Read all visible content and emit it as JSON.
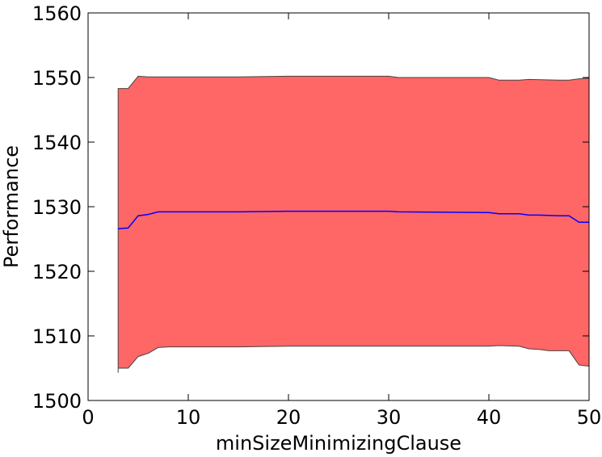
{
  "chart_data": {
    "type": "area",
    "title": "",
    "xlabel": "minSizeMinimizingClause",
    "ylabel": "Performance",
    "xlim": [
      0,
      50
    ],
    "ylim": [
      1500,
      1560
    ],
    "xticks": [
      0,
      10,
      20,
      30,
      40,
      50
    ],
    "yticks": [
      1500,
      1510,
      1520,
      1530,
      1540,
      1550,
      1560
    ],
    "grid": false,
    "legend": "none",
    "colors": {
      "band_fill": "#ff6666",
      "band_edge": "#444444",
      "mean_line": "#0000ff"
    },
    "band_upper": {
      "x": [
        3,
        4,
        5,
        6,
        8,
        10,
        15,
        20,
        25,
        30,
        31,
        40,
        41,
        43,
        44,
        47,
        48,
        49,
        50
      ],
      "y": [
        1548.3,
        1548.3,
        1550.2,
        1550.1,
        1550.1,
        1550.1,
        1550.1,
        1550.2,
        1550.2,
        1550.2,
        1550.0,
        1550.0,
        1549.6,
        1549.6,
        1549.7,
        1549.6,
        1549.6,
        1549.8,
        1549.9
      ]
    },
    "band_lower": {
      "x": [
        3,
        3,
        4,
        5,
        6,
        7,
        8,
        10,
        15,
        20,
        25,
        30,
        31,
        40,
        41,
        43,
        44,
        45,
        46,
        47,
        48,
        49,
        50
      ],
      "y": [
        1504.3,
        1505.0,
        1505.0,
        1506.8,
        1507.3,
        1508.2,
        1508.3,
        1508.3,
        1508.3,
        1508.4,
        1508.4,
        1508.4,
        1508.4,
        1508.4,
        1508.5,
        1508.4,
        1508.0,
        1507.9,
        1507.7,
        1507.7,
        1507.7,
        1505.5,
        1505.3
      ]
    },
    "mean": {
      "x": [
        3,
        4,
        5,
        6,
        7,
        8,
        10,
        15,
        20,
        25,
        30,
        31,
        40,
        41,
        43,
        44,
        45,
        47,
        48,
        49,
        50
      ],
      "y": [
        1526.6,
        1526.7,
        1528.6,
        1528.8,
        1529.2,
        1529.2,
        1529.2,
        1529.2,
        1529.3,
        1529.3,
        1529.3,
        1529.2,
        1529.1,
        1528.9,
        1528.9,
        1528.7,
        1528.7,
        1528.6,
        1528.6,
        1527.6,
        1527.6
      ]
    }
  }
}
